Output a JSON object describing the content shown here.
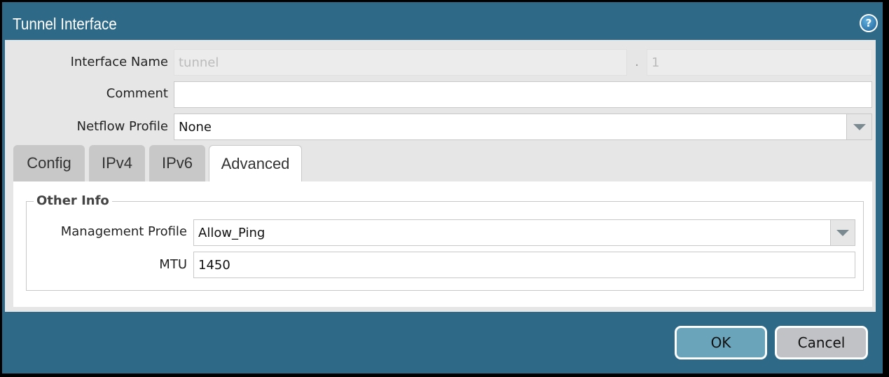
{
  "dialog": {
    "title": "Tunnel Interface",
    "help_icon": "help-icon"
  },
  "fields": {
    "interface_name_label": "Interface Name",
    "interface_name_value": "tunnel",
    "separator": ".",
    "interface_unit": "1",
    "comment_label": "Comment",
    "comment_value": "",
    "netflow_label": "Netflow Profile",
    "netflow_value": "None"
  },
  "tabs": [
    {
      "label": "Config"
    },
    {
      "label": "IPv4"
    },
    {
      "label": "IPv6"
    },
    {
      "label": "Advanced",
      "active": true
    }
  ],
  "advanced": {
    "section": "Other Info",
    "mgmt_label": "Management Profile",
    "mgmt_value": "Allow_Ping",
    "mtu_label": "MTU",
    "mtu_value": "1450"
  },
  "buttons": {
    "ok": "OK",
    "cancel": "Cancel"
  },
  "colors": {
    "titlebar": "#2e6a87",
    "ok_button": "#6aa4ba",
    "cancel_button": "#c0c2c6"
  }
}
